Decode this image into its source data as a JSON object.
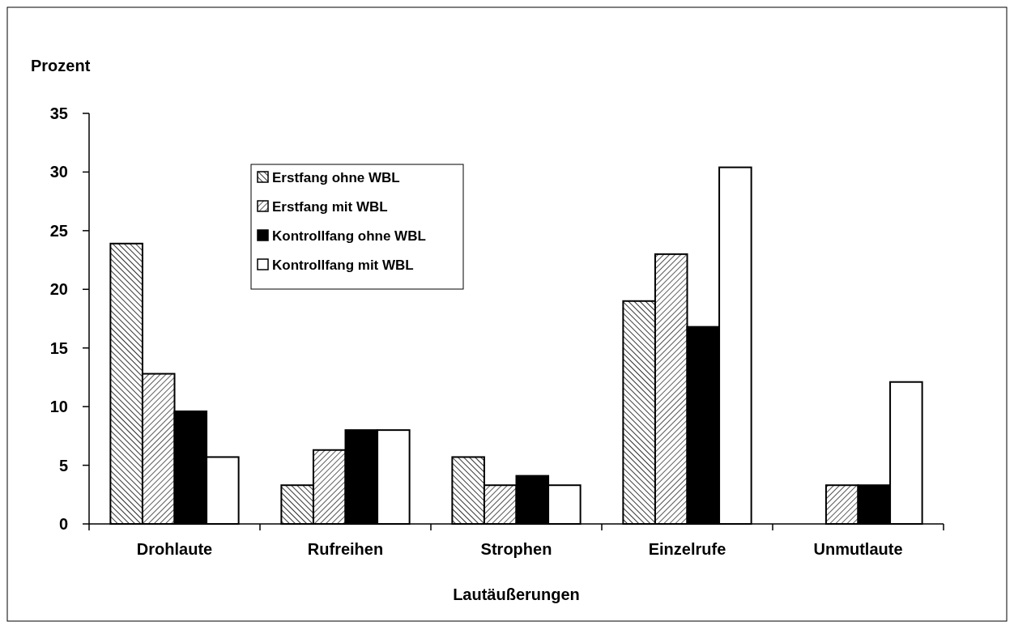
{
  "chart_data": {
    "type": "bar",
    "ylabel": "Prozent",
    "xlabel": "Lautäußerungen",
    "categories": [
      "Drohlaute",
      "Rufreihen",
      "Strophen",
      "Einzelrufe",
      "Unmutlaute"
    ],
    "series": [
      {
        "name": "Erstfang ohne WBL",
        "color": "#000000",
        "values": [
          23.9,
          3.3,
          5.7,
          19.0,
          null
        ]
      },
      {
        "name": "Erstfang mit WBL",
        "color": "#000000",
        "values": [
          12.8,
          6.3,
          3.3,
          23.0,
          3.3
        ]
      },
      {
        "name": "Kontrollfang ohne WBL",
        "color": "#000000",
        "values": [
          9.6,
          8.0,
          4.1,
          16.8,
          3.3
        ]
      },
      {
        "name": "Kontrollfang mit WBL",
        "color": "#ffffff",
        "values": [
          5.7,
          8.0,
          3.3,
          30.4,
          12.1
        ]
      }
    ],
    "ylim": [
      0,
      35
    ],
    "yticks": [
      0,
      5,
      10,
      15,
      20,
      25,
      30,
      35
    ],
    "grid": false,
    "legend": "top left"
  }
}
